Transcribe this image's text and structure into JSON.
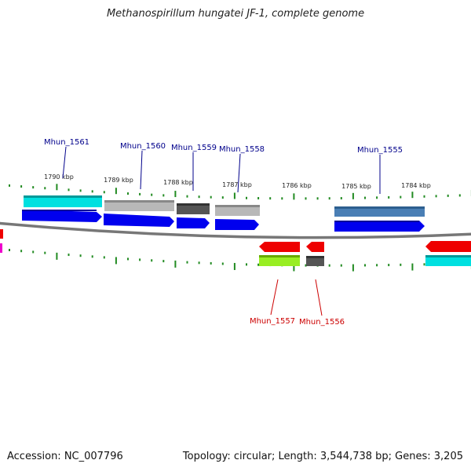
{
  "title": "Methanospirillum hungatei JF-1, complete genome",
  "footer": {
    "accession": "Accession: NC_007796",
    "summary": "Topology: circular; Length: 3,544,738 bp; Genes: 3,205"
  },
  "ticks": [
    "1790 kbp",
    "1789 kbp",
    "1788 kbp",
    "1787 kbp",
    "1786 kbp",
    "1785 kbp",
    "1784 kbp"
  ],
  "genes_forward": [
    "Mhun_1561",
    "Mhun_1560",
    "Mhun_1559",
    "Mhun_1558",
    "Mhun_1555"
  ],
  "genes_reverse": [
    "Mhun_1557",
    "Mhun_1556"
  ],
  "colors": {
    "cds_forward": "#0000ee",
    "cds_reverse": "#ee0000",
    "label_forward": "#00008b",
    "label_reverse": "#cc0000",
    "cyan": "#00e0e0",
    "light_gray": "#b8b8b8",
    "dark_gray": "#555555",
    "steel_blue": "#4a7fb5",
    "yellow_green": "#99ee22",
    "magenta": "#ee00cc",
    "tick_green": "#228b22",
    "backbone": "#777777"
  }
}
